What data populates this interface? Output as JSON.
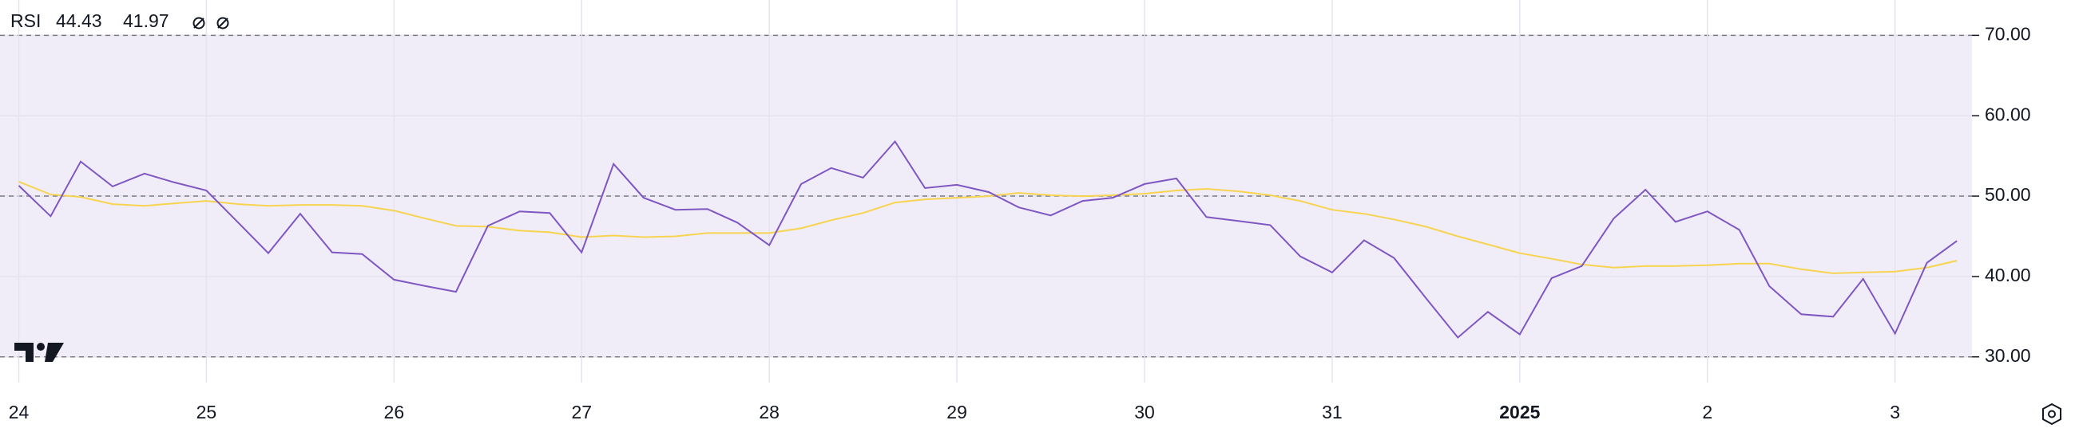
{
  "chart_data": {
    "type": "line",
    "title": "RSI",
    "x": [
      0,
      0.17,
      0.33,
      0.5,
      0.67,
      0.83,
      1,
      1.17,
      1.33,
      1.5,
      1.67,
      1.83,
      2,
      2.17,
      2.33,
      2.5,
      2.67,
      2.83,
      3,
      3.17,
      3.33,
      3.5,
      3.67,
      3.83,
      4,
      4.17,
      4.33,
      4.5,
      4.67,
      4.83,
      5,
      5.17,
      5.33,
      5.5,
      5.67,
      5.83,
      6,
      6.17,
      6.33,
      6.5,
      6.67,
      6.83,
      7,
      7.17,
      7.33,
      7.5,
      7.67,
      7.83,
      8,
      8.17,
      8.33,
      8.5,
      8.67,
      8.83,
      9,
      9.17,
      9.33,
      9.5,
      9.67,
      9.83,
      10,
      10.17,
      10.33
    ],
    "series": [
      {
        "color": "#7e57c2",
        "values": [
          51.3,
          47.5,
          54.3,
          51.2,
          52.8,
          51.7,
          50.7,
          46.7,
          42.9,
          47.8,
          43.0,
          42.8,
          39.6,
          38.8,
          38.1,
          46.3,
          48.1,
          47.9,
          43.0,
          54.0,
          49.8,
          48.3,
          48.4,
          46.7,
          43.9,
          51.5,
          53.5,
          52.3,
          56.8,
          51.0,
          51.4,
          50.5,
          48.6,
          47.6,
          49.4,
          49.8,
          51.5,
          52.2,
          47.4,
          46.9,
          46.4,
          42.5,
          40.5,
          44.5,
          42.3,
          37.3,
          32.4,
          35.6,
          32.8,
          39.8,
          41.3,
          47.2,
          50.8,
          46.8,
          48.1,
          45.8,
          38.8,
          35.3,
          35.0,
          39.7,
          32.9,
          41.7,
          44.43
        ]
      },
      {
        "color": "#f7d44f",
        "values": [
          51.8,
          50.2,
          49.9,
          49.0,
          48.8,
          49.1,
          49.4,
          49.0,
          48.8,
          48.9,
          48.9,
          48.8,
          48.2,
          47.2,
          46.3,
          46.2,
          45.7,
          45.5,
          44.9,
          45.1,
          44.9,
          45.0,
          45.4,
          45.4,
          45.4,
          46.0,
          47.0,
          47.9,
          49.2,
          49.6,
          49.8,
          50.0,
          50.4,
          50.1,
          50.0,
          50.1,
          50.3,
          50.7,
          50.9,
          50.6,
          50.1,
          49.4,
          48.3,
          47.8,
          47.1,
          46.2,
          45.0,
          44.0,
          42.9,
          42.2,
          41.5,
          41.1,
          41.3,
          41.3,
          41.4,
          41.6,
          41.6,
          40.9,
          40.4,
          40.5,
          40.6,
          41.1,
          41.97
        ]
      }
    ],
    "xlim": [
      -0.1,
      10.41
    ],
    "xticks": [
      {
        "value": 0,
        "label": "24"
      },
      {
        "value": 1,
        "label": "25"
      },
      {
        "value": 2,
        "label": "26"
      },
      {
        "value": 3,
        "label": "27"
      },
      {
        "value": 4,
        "label": "28"
      },
      {
        "value": 5,
        "label": "29"
      },
      {
        "value": 6,
        "label": "30"
      },
      {
        "value": 7,
        "label": "31"
      },
      {
        "value": 8,
        "label": "2025"
      },
      {
        "value": 9,
        "label": "2"
      },
      {
        "value": 10,
        "label": "3"
      }
    ],
    "bold_xticks": [
      8
    ],
    "ylim": [
      26.8,
      74.4
    ],
    "yticks": [
      {
        "value": 30,
        "label": "30.00"
      },
      {
        "value": 40,
        "label": "40.00"
      },
      {
        "value": 50,
        "label": "50.00"
      },
      {
        "value": 60,
        "label": "60.00"
      },
      {
        "value": 70,
        "label": "70.00"
      }
    ],
    "band": [
      30,
      70
    ],
    "band_color": "#f0ecf8",
    "levels": [
      30,
      50,
      70
    ],
    "grid": true
  }
}
